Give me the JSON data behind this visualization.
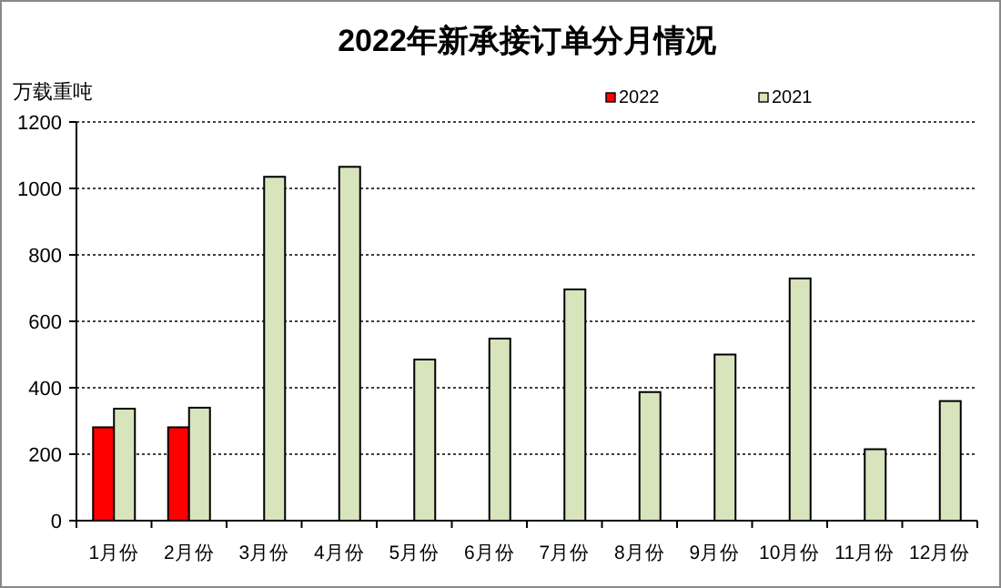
{
  "chart_data": {
    "type": "bar",
    "title": "2022年新承接订单分月情况",
    "ylabel": "万载重吨",
    "categories": [
      "1月份",
      "2月份",
      "3月份",
      "4月份",
      "5月份",
      "6月份",
      "7月份",
      "8月份",
      "9月份",
      "10月份",
      "11月份",
      "12月份"
    ],
    "series": [
      {
        "name": "2022",
        "color": "#ff0000",
        "values": [
          281,
          281,
          null,
          null,
          null,
          null,
          null,
          null,
          null,
          null,
          null,
          null
        ]
      },
      {
        "name": "2021",
        "color": "#d8e4bc",
        "values": [
          337,
          340,
          1035,
          1065,
          485,
          548,
          696,
          387,
          500,
          729,
          215,
          360
        ]
      }
    ],
    "ylim": [
      0,
      1200
    ],
    "yticks": [
      0,
      200,
      400,
      600,
      800,
      1000,
      1200
    ],
    "grid": "y",
    "legend": "top right"
  }
}
